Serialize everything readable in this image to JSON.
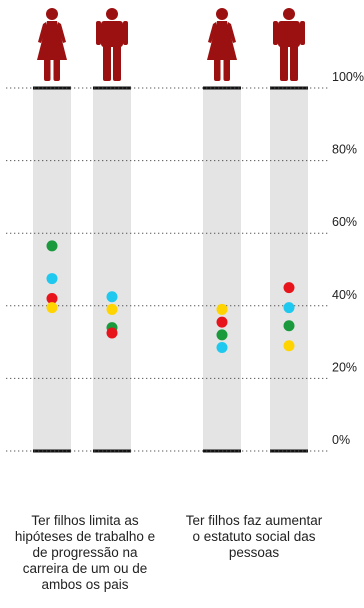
{
  "chart_data": {
    "type": "scatter",
    "ylim": [
      0,
      100
    ],
    "y_ticks": [
      "0%",
      "20%",
      "40%",
      "60%",
      "80%",
      "100%"
    ],
    "grid": true,
    "groups": [
      {
        "caption": "Ter filhos limita as hipóteses de trabalho e de progressão na carreira de um ou de ambos os pais",
        "columns": [
          {
            "gender": "female",
            "points": [
              {
                "color": "#1a9a3c",
                "value": 56.5
              },
              {
                "color": "#1ec8ee",
                "value": 47.5
              },
              {
                "color": "#e8141c",
                "value": 42.0
              },
              {
                "color": "#ffd400",
                "value": 39.5
              }
            ]
          },
          {
            "gender": "male",
            "points": [
              {
                "color": "#1ec8ee",
                "value": 42.5
              },
              {
                "color": "#ffd400",
                "value": 39.0
              },
              {
                "color": "#1a9a3c",
                "value": 34.0
              },
              {
                "color": "#e8141c",
                "value": 32.5
              }
            ]
          }
        ]
      },
      {
        "caption": "Ter filhos faz aumentar o estatuto social das pessoas",
        "columns": [
          {
            "gender": "female",
            "points": [
              {
                "color": "#ffd400",
                "value": 39.0
              },
              {
                "color": "#e8141c",
                "value": 35.5
              },
              {
                "color": "#1a9a3c",
                "value": 32.0
              },
              {
                "color": "#1ec8ee",
                "value": 28.5
              }
            ]
          },
          {
            "gender": "male",
            "points": [
              {
                "color": "#e8141c",
                "value": 45.0
              },
              {
                "color": "#1ec8ee",
                "value": 39.5
              },
              {
                "color": "#1a9a3c",
                "value": 34.5
              },
              {
                "color": "#ffd400",
                "value": 29.0
              }
            ]
          }
        ]
      }
    ]
  },
  "colors": {
    "icon": "#9b1111",
    "column": "#e4e4e4",
    "grid": "#555555",
    "text": "#222222"
  }
}
